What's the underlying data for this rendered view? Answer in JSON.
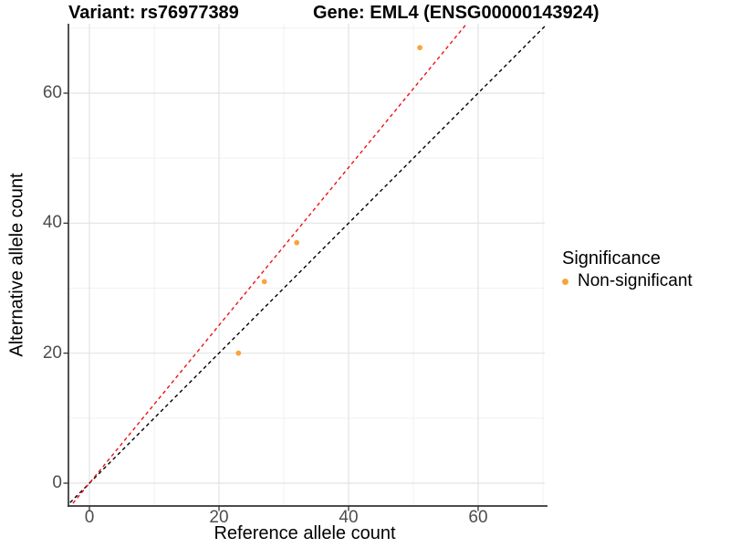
{
  "titles": {
    "variant": "Variant: rs76977389",
    "gene": "Gene: EML4 (ENSG00000143924)"
  },
  "axes": {
    "x_label": "Reference allele count",
    "y_label": "Alternative allele count",
    "x_ticks": [
      "0",
      "20",
      "40",
      "60"
    ],
    "y_ticks": [
      "0",
      "20",
      "40",
      "60"
    ]
  },
  "legend": {
    "title": "Significance",
    "items": [
      {
        "label": "Non-significant",
        "color": "#F9A43B"
      }
    ]
  },
  "colors": {
    "point": "#F9A43B",
    "identity_line": "#000000",
    "fit_line": "#EE1111",
    "axis_line": "#333333",
    "grid_major": "#E3E3E3",
    "grid_minor": "#F1F1F1",
    "tick_text": "#4D4D4D"
  },
  "chart_data": {
    "type": "scatter",
    "title": "Variant: rs76977389 | Gene: EML4 (ENSG00000143924)",
    "xlabel": "Reference allele count",
    "ylabel": "Alternative allele count",
    "xlim": [
      -3.2,
      70.3
    ],
    "ylim": [
      -3.5,
      70.7
    ],
    "x_ticks": [
      0,
      20,
      40,
      60
    ],
    "y_ticks": [
      0,
      20,
      40,
      60
    ],
    "minor_ticks": [
      10,
      30,
      50,
      70
    ],
    "grid": true,
    "legend_position": "right",
    "series": [
      {
        "name": "Non-significant",
        "color": "#F9A43B",
        "points": [
          [
            23,
            20
          ],
          [
            27,
            31
          ],
          [
            32,
            37
          ],
          [
            51,
            67
          ]
        ]
      }
    ],
    "lines": [
      {
        "name": "identity",
        "slope": 1.0,
        "intercept": 0,
        "color": "#000000",
        "dashed": true
      },
      {
        "name": "fitted-ratio",
        "slope": 1.214,
        "intercept": 0,
        "color": "#EE1111",
        "dashed": true
      }
    ]
  }
}
